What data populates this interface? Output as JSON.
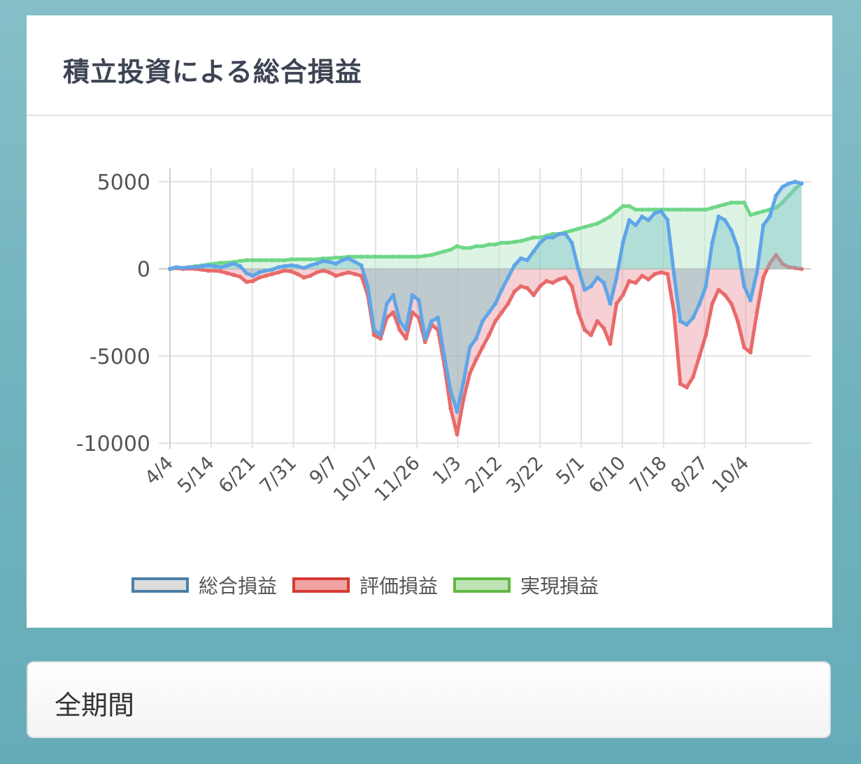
{
  "title": "積立投資による総合損益",
  "period": {
    "label": "全期間"
  },
  "chart_data": {
    "type": "line",
    "x_tick_labels": [
      "4/4",
      "5/14",
      "6/21",
      "7/31",
      "9/7",
      "10/17",
      "11/26",
      "1/3",
      "2/12",
      "3/22",
      "5/1",
      "6/10",
      "7/18",
      "8/27",
      "10/4"
    ],
    "y_ticks": [
      5000,
      0,
      -5000,
      -10000
    ],
    "ylim": [
      -10000,
      5000
    ],
    "grid": true,
    "legend_position": "bottom",
    "series": [
      {
        "name": "総合損益",
        "color": "#60a5e8",
        "fill": "rgba(125,195,200,0.45)",
        "legend_fill": "#dcdcdc",
        "legend_border": "#4a7fa8",
        "values": [
          0,
          100,
          50,
          100,
          100,
          150,
          200,
          150,
          100,
          200,
          300,
          150,
          -250,
          -400,
          -200,
          -100,
          -50,
          100,
          150,
          200,
          150,
          50,
          200,
          300,
          450,
          400,
          300,
          500,
          600,
          400,
          200,
          -1000,
          -3500,
          -3800,
          -2000,
          -1500,
          -3000,
          -3500,
          -1500,
          -1800,
          -4000,
          -3000,
          -2800,
          -5000,
          -7000,
          -8200,
          -6500,
          -4500,
          -4000,
          -3000,
          -2500,
          -2000,
          -1200,
          -500,
          200,
          600,
          500,
          1000,
          1500,
          1800,
          1800,
          2000,
          2000,
          1500,
          0,
          -1200,
          -1000,
          -500,
          -800,
          -2000,
          -500,
          1500,
          2800,
          2500,
          3000,
          2800,
          3200,
          3300,
          2800,
          -300,
          -3000,
          -3200,
          -2800,
          -2000,
          -1000,
          1500,
          3000,
          2800,
          2200,
          1200,
          -1000,
          -1800,
          -200,
          2500,
          3000,
          4200,
          4700,
          4900,
          5000,
          4900
        ]
      },
      {
        "name": "評価損益",
        "color": "#e86a6a",
        "fill": "rgba(235,150,160,0.45)",
        "legend_fill": "#f0a2a2",
        "legend_border": "#d63a34",
        "values": [
          0,
          50,
          0,
          20,
          0,
          -50,
          -100,
          -100,
          -150,
          -250,
          -350,
          -450,
          -750,
          -700,
          -500,
          -400,
          -300,
          -200,
          -100,
          -150,
          -300,
          -500,
          -400,
          -200,
          -100,
          -200,
          -400,
          -300,
          -200,
          -300,
          -400,
          -1500,
          -3800,
          -4000,
          -2800,
          -2500,
          -3500,
          -4000,
          -2500,
          -2800,
          -4200,
          -3200,
          -3500,
          -5500,
          -8000,
          -9500,
          -7500,
          -6000,
          -5200,
          -4500,
          -3800,
          -3000,
          -2500,
          -2000,
          -1300,
          -1000,
          -1100,
          -1500,
          -1000,
          -700,
          -800,
          -600,
          -500,
          -1000,
          -2500,
          -3500,
          -3800,
          -3000,
          -3400,
          -4300,
          -2000,
          -1500,
          -700,
          -800,
          -400,
          -600,
          -300,
          -200,
          -300,
          -2500,
          -6600,
          -6800,
          -6200,
          -5000,
          -3800,
          -2000,
          -1200,
          -1500,
          -2000,
          -3000,
          -4500,
          -4800,
          -2500,
          -500,
          300,
          800,
          300,
          100,
          50,
          0
        ]
      },
      {
        "name": "実現損益",
        "color": "#6fd788",
        "fill": "rgba(180,230,195,0.45)",
        "legend_fill": "#bfe3b4",
        "legend_border": "#5fb844",
        "values": [
          0,
          50,
          50,
          100,
          150,
          200,
          250,
          300,
          350,
          350,
          400,
          450,
          500,
          500,
          500,
          500,
          500,
          500,
          500,
          550,
          550,
          550,
          550,
          550,
          600,
          600,
          650,
          650,
          700,
          700,
          700,
          700,
          700,
          700,
          700,
          700,
          700,
          700,
          700,
          700,
          750,
          800,
          900,
          1000,
          1100,
          1300,
          1200,
          1200,
          1300,
          1300,
          1400,
          1400,
          1500,
          1500,
          1550,
          1600,
          1700,
          1800,
          1800,
          1900,
          2000,
          2000,
          2100,
          2200,
          2300,
          2400,
          2500,
          2600,
          2800,
          3000,
          3300,
          3600,
          3600,
          3400,
          3400,
          3400,
          3400,
          3400,
          3400,
          3400,
          3400,
          3400,
          3400,
          3400,
          3400,
          3500,
          3600,
          3700,
          3800,
          3800,
          3800,
          3100,
          3200,
          3300,
          3400,
          3500,
          3800,
          4200,
          4600,
          4900
        ]
      }
    ]
  }
}
